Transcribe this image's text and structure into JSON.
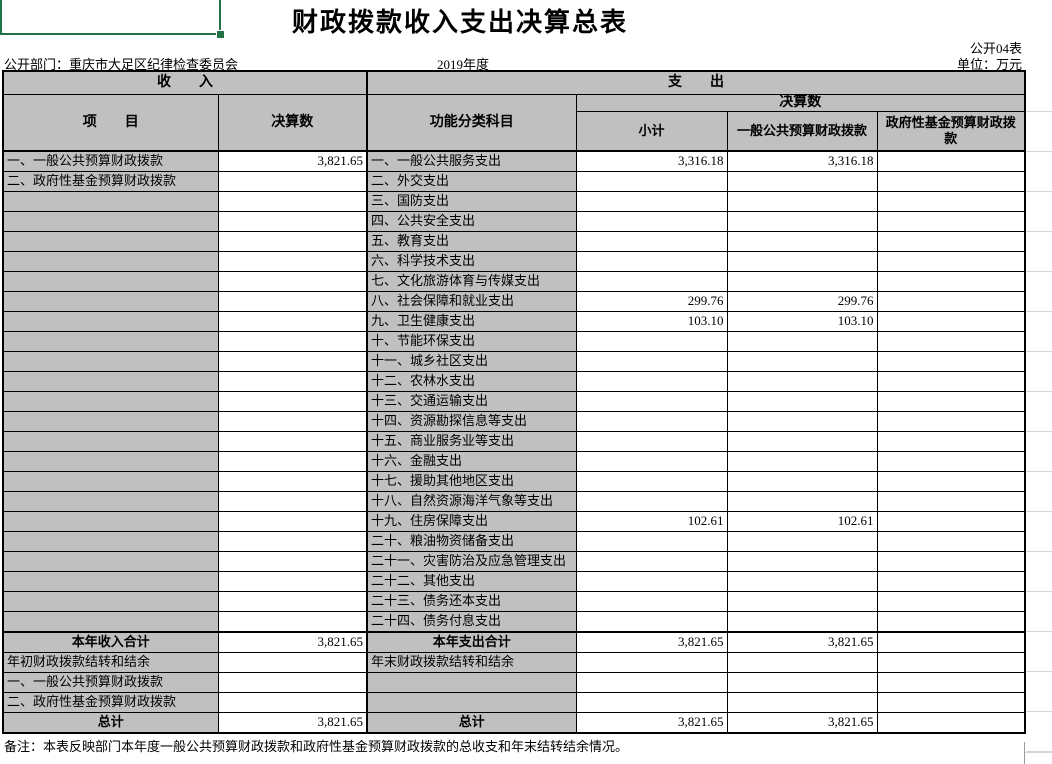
{
  "header": {
    "title": "财政拨款收入支出决算总表",
    "table_code": "公开04表",
    "department": "公开部门：重庆市大足区纪律检查委员会",
    "year": "2019年度",
    "unit": "单位：万元"
  },
  "table": {
    "income_header": "收　　入",
    "expense_header": "支　　出",
    "col_item": "项　　目",
    "col_amount": "决算数",
    "col_func": "功能分类科目",
    "col_amount_expense": "决算数",
    "col_subtotal": "小计",
    "col_general_budget": "一般公共预算财政拨款",
    "col_gov_fund": "政府性基金预算财政拨款",
    "rows": [
      {
        "income_item": "一、一般公共预算财政拨款",
        "income_value": "3,821.65",
        "expense_item": "一、一般公共服务支出",
        "subtotal": "3,316.18",
        "general_budget": "3,316.18",
        "gov_fund": ""
      },
      {
        "income_item": "二、政府性基金预算财政拨款",
        "income_value": "",
        "expense_item": "二、外交支出",
        "subtotal": "",
        "general_budget": "",
        "gov_fund": ""
      },
      {
        "income_item": "",
        "income_value": "",
        "expense_item": "三、国防支出",
        "subtotal": "",
        "general_budget": "",
        "gov_fund": ""
      },
      {
        "income_item": "",
        "income_value": "",
        "expense_item": "四、公共安全支出",
        "subtotal": "",
        "general_budget": "",
        "gov_fund": ""
      },
      {
        "income_item": "",
        "income_value": "",
        "expense_item": "五、教育支出",
        "subtotal": "",
        "general_budget": "",
        "gov_fund": ""
      },
      {
        "income_item": "",
        "income_value": "",
        "expense_item": "六、科学技术支出",
        "subtotal": "",
        "general_budget": "",
        "gov_fund": ""
      },
      {
        "income_item": "",
        "income_value": "",
        "expense_item": "七、文化旅游体育与传媒支出",
        "subtotal": "",
        "general_budget": "",
        "gov_fund": ""
      },
      {
        "income_item": "",
        "income_value": "",
        "expense_item": "八、社会保障和就业支出",
        "subtotal": "299.76",
        "general_budget": "299.76",
        "gov_fund": ""
      },
      {
        "income_item": "",
        "income_value": "",
        "expense_item": "九、卫生健康支出",
        "subtotal": "103.10",
        "general_budget": "103.10",
        "gov_fund": ""
      },
      {
        "income_item": "",
        "income_value": "",
        "expense_item": "十、节能环保支出",
        "subtotal": "",
        "general_budget": "",
        "gov_fund": ""
      },
      {
        "income_item": "",
        "income_value": "",
        "expense_item": "十一、城乡社区支出",
        "subtotal": "",
        "general_budget": "",
        "gov_fund": ""
      },
      {
        "income_item": "",
        "income_value": "",
        "expense_item": "十二、农林水支出",
        "subtotal": "",
        "general_budget": "",
        "gov_fund": ""
      },
      {
        "income_item": "",
        "income_value": "",
        "expense_item": "十三、交通运输支出",
        "subtotal": "",
        "general_budget": "",
        "gov_fund": ""
      },
      {
        "income_item": "",
        "income_value": "",
        "expense_item": "十四、资源勘探信息等支出",
        "subtotal": "",
        "general_budget": "",
        "gov_fund": ""
      },
      {
        "income_item": "",
        "income_value": "",
        "expense_item": "十五、商业服务业等支出",
        "subtotal": "",
        "general_budget": "",
        "gov_fund": ""
      },
      {
        "income_item": "",
        "income_value": "",
        "expense_item": "十六、金融支出",
        "subtotal": "",
        "general_budget": "",
        "gov_fund": ""
      },
      {
        "income_item": "",
        "income_value": "",
        "expense_item": "十七、援助其他地区支出",
        "subtotal": "",
        "general_budget": "",
        "gov_fund": ""
      },
      {
        "income_item": "",
        "income_value": "",
        "expense_item": "十八、自然资源海洋气象等支出",
        "subtotal": "",
        "general_budget": "",
        "gov_fund": ""
      },
      {
        "income_item": "",
        "income_value": "",
        "expense_item": "十九、住房保障支出",
        "subtotal": "102.61",
        "general_budget": "102.61",
        "gov_fund": ""
      },
      {
        "income_item": "",
        "income_value": "",
        "expense_item": "二十、粮油物资储备支出",
        "subtotal": "",
        "general_budget": "",
        "gov_fund": ""
      },
      {
        "income_item": "",
        "income_value": "",
        "expense_item": "二十一、灾害防治及应急管理支出",
        "subtotal": "",
        "general_budget": "",
        "gov_fund": ""
      },
      {
        "income_item": "",
        "income_value": "",
        "expense_item": "二十二、其他支出",
        "subtotal": "",
        "general_budget": "",
        "gov_fund": ""
      },
      {
        "income_item": "",
        "income_value": "",
        "expense_item": "二十三、债务还本支出",
        "subtotal": "",
        "general_budget": "",
        "gov_fund": ""
      },
      {
        "income_item": "",
        "income_value": "",
        "expense_item": "二十四、债务付息支出",
        "subtotal": "",
        "general_budget": "",
        "gov_fund": ""
      }
    ],
    "summary_rows": [
      {
        "income_item": "本年收入合计",
        "income_value": "3,821.65",
        "expense_item": "本年支出合计",
        "subtotal": "3,821.65",
        "general_budget": "3,821.65",
        "gov_fund": "",
        "emphasis": true,
        "thick_top": true
      },
      {
        "income_item": "年初财政拨款结转和结余",
        "income_value": "",
        "expense_item": "年末财政拨款结转和结余",
        "subtotal": "",
        "general_budget": "",
        "gov_fund": ""
      },
      {
        "income_item": "一、一般公共预算财政拨款",
        "income_value": "",
        "expense_item": "",
        "subtotal": "",
        "general_budget": "",
        "gov_fund": ""
      },
      {
        "income_item": "二、政府性基金预算财政拨款",
        "income_value": "",
        "expense_item": "",
        "subtotal": "",
        "general_budget": "",
        "gov_fund": ""
      },
      {
        "income_item": "总计",
        "income_value": "3,821.65",
        "expense_item": "总计",
        "subtotal": "3,821.65",
        "general_budget": "3,821.65",
        "gov_fund": "",
        "emphasis": true
      }
    ]
  },
  "footer": {
    "note": "备注：本表反映部门本年度一般公共预算财政拨款和政府性基金预算财政拨款的总收支和年末结转结余情况。"
  },
  "colors": {
    "header_gray": "#c0c0c0",
    "selection_green": "#217346",
    "gridline_gray": "#d4d4d4"
  }
}
